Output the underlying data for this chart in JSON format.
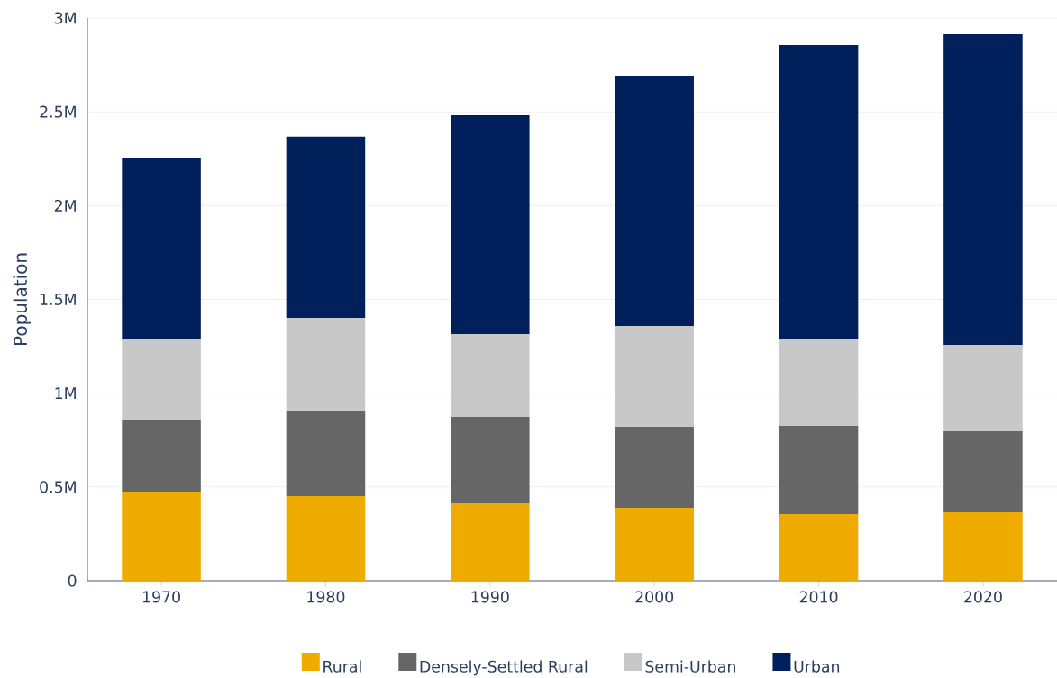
{
  "chart_data": {
    "type": "bar",
    "stacked": true,
    "ylabel": "Population",
    "categories": [
      "1970",
      "1980",
      "1990",
      "2000",
      "2010",
      "2020"
    ],
    "series": [
      {
        "name": "Rural",
        "color": "#f0ab00",
        "values": [
          475000,
          451000,
          413000,
          389000,
          355000,
          365000
        ]
      },
      {
        "name": "Densely-Settled Rural",
        "color": "#666666",
        "values": [
          384000,
          451000,
          461000,
          432000,
          471000,
          432000
        ]
      },
      {
        "name": "Semi-Urban",
        "color": "#c8c8c8",
        "values": [
          428000,
          500000,
          441000,
          537000,
          461000,
          461000
        ]
      },
      {
        "name": "Urban",
        "color": "#00205b",
        "values": [
          964000,
          965000,
          1167000,
          1335000,
          1569000,
          1656000
        ]
      }
    ],
    "ylim": [
      0,
      3000000
    ],
    "yticks": [
      0,
      {
        "value": 500000,
        "label": "0.5M"
      },
      {
        "value": 1000000,
        "label": "1M"
      },
      {
        "value": 1500000,
        "label": "1.5M"
      },
      {
        "value": 2000000,
        "label": "2M"
      },
      {
        "value": 2500000,
        "label": "2.5M"
      },
      {
        "value": 3000000,
        "label": "3M"
      }
    ],
    "grid": "y",
    "legend": "bottom"
  }
}
